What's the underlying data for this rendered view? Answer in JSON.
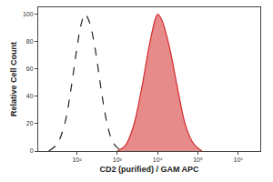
{
  "chart_data": {
    "type": "line",
    "x_label": "CD2 (purified) / GAM APC",
    "y_label": "Relative Cell Count",
    "log": "x",
    "xlim": [
      11,
      3500000
    ],
    "xticks": [
      {
        "value": 100,
        "label": "10²"
      },
      {
        "value": 1000,
        "label": "10³"
      },
      {
        "value": 10000,
        "label": "10⁴"
      },
      {
        "value": 100000,
        "label": "10⁵"
      },
      {
        "value": 1000000,
        "label": "10⁶"
      }
    ],
    "ylim": [
      0,
      105
    ],
    "yticks": [
      0,
      20,
      40,
      60,
      80,
      100
    ],
    "grid": false,
    "series": [
      {
        "type": "line",
        "line_style": "dashed",
        "color": "#222222",
        "x": [
          20,
          32,
          50,
          71,
          100,
          126,
          158,
          200,
          282,
          398,
          562,
          794,
          1259
        ],
        "values": [
          0,
          5,
          20,
          45,
          75,
          92,
          100,
          95,
          75,
          45,
          20,
          6,
          0
        ]
      },
      {
        "type": "area",
        "line_style": "solid",
        "color": "#d42a2a",
        "x": [
          1000,
          1585,
          2512,
          3981,
          6310,
          8913,
          10000,
          12589,
          19953,
          31623,
          50119,
          79433,
          125893
        ],
        "values": [
          0,
          4,
          18,
          45,
          78,
          97,
          100,
          96,
          75,
          45,
          18,
          5,
          0
        ]
      }
    ]
  }
}
